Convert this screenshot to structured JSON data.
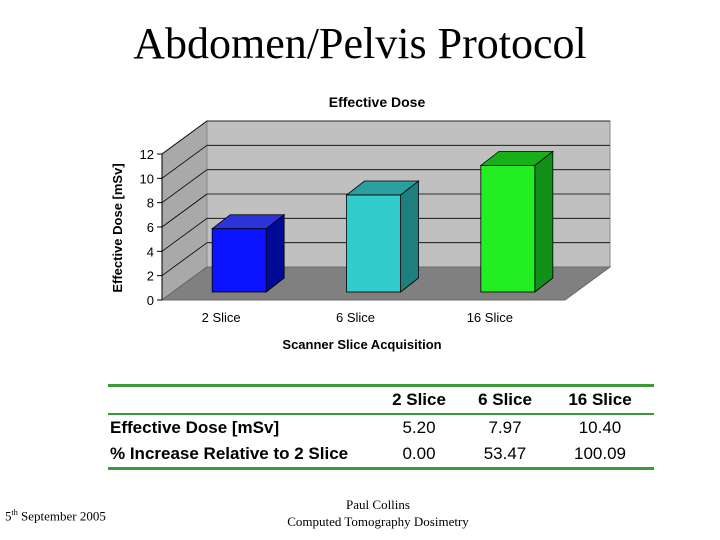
{
  "slide": {
    "title": "Abdomen/Pelvis Protocol",
    "footer_date_day": "5",
    "footer_date_suffix": "th",
    "footer_date_rest": " September 2005",
    "footer_author": "Paul Collins",
    "footer_subject": "Computed Tomography Dosimetry"
  },
  "chart_data": {
    "type": "bar",
    "title": "Effective Dose",
    "xlabel": "Scanner Slice Acquisition",
    "ylabel": "Effective Dose [mSv]",
    "categories": [
      "2 Slice",
      "6 Slice",
      "16 Slice"
    ],
    "values": [
      5.2,
      7.97,
      10.4
    ],
    "colors": [
      "#0a14ff",
      "#33cccc",
      "#22ee22"
    ],
    "side_colors": [
      "#000a99",
      "#1f7f7f",
      "#12901a"
    ],
    "top_colors": [
      "#2a34d8",
      "#2a9f9f",
      "#18b018"
    ],
    "ylim": [
      0,
      12
    ],
    "yticks": [
      0,
      2,
      4,
      6,
      8,
      10,
      12
    ],
    "grid": true,
    "three_d": true
  },
  "table": {
    "headers": [
      "",
      "2 Slice",
      "6 Slice",
      "16 Slice"
    ],
    "rows": [
      {
        "label": "Effective Dose [mSv]",
        "values": [
          "5.20",
          "7.97",
          "10.40"
        ]
      },
      {
        "label": "% Increase Relative to 2 Slice",
        "values": [
          "0.00",
          "53.47",
          "100.09"
        ]
      }
    ]
  }
}
